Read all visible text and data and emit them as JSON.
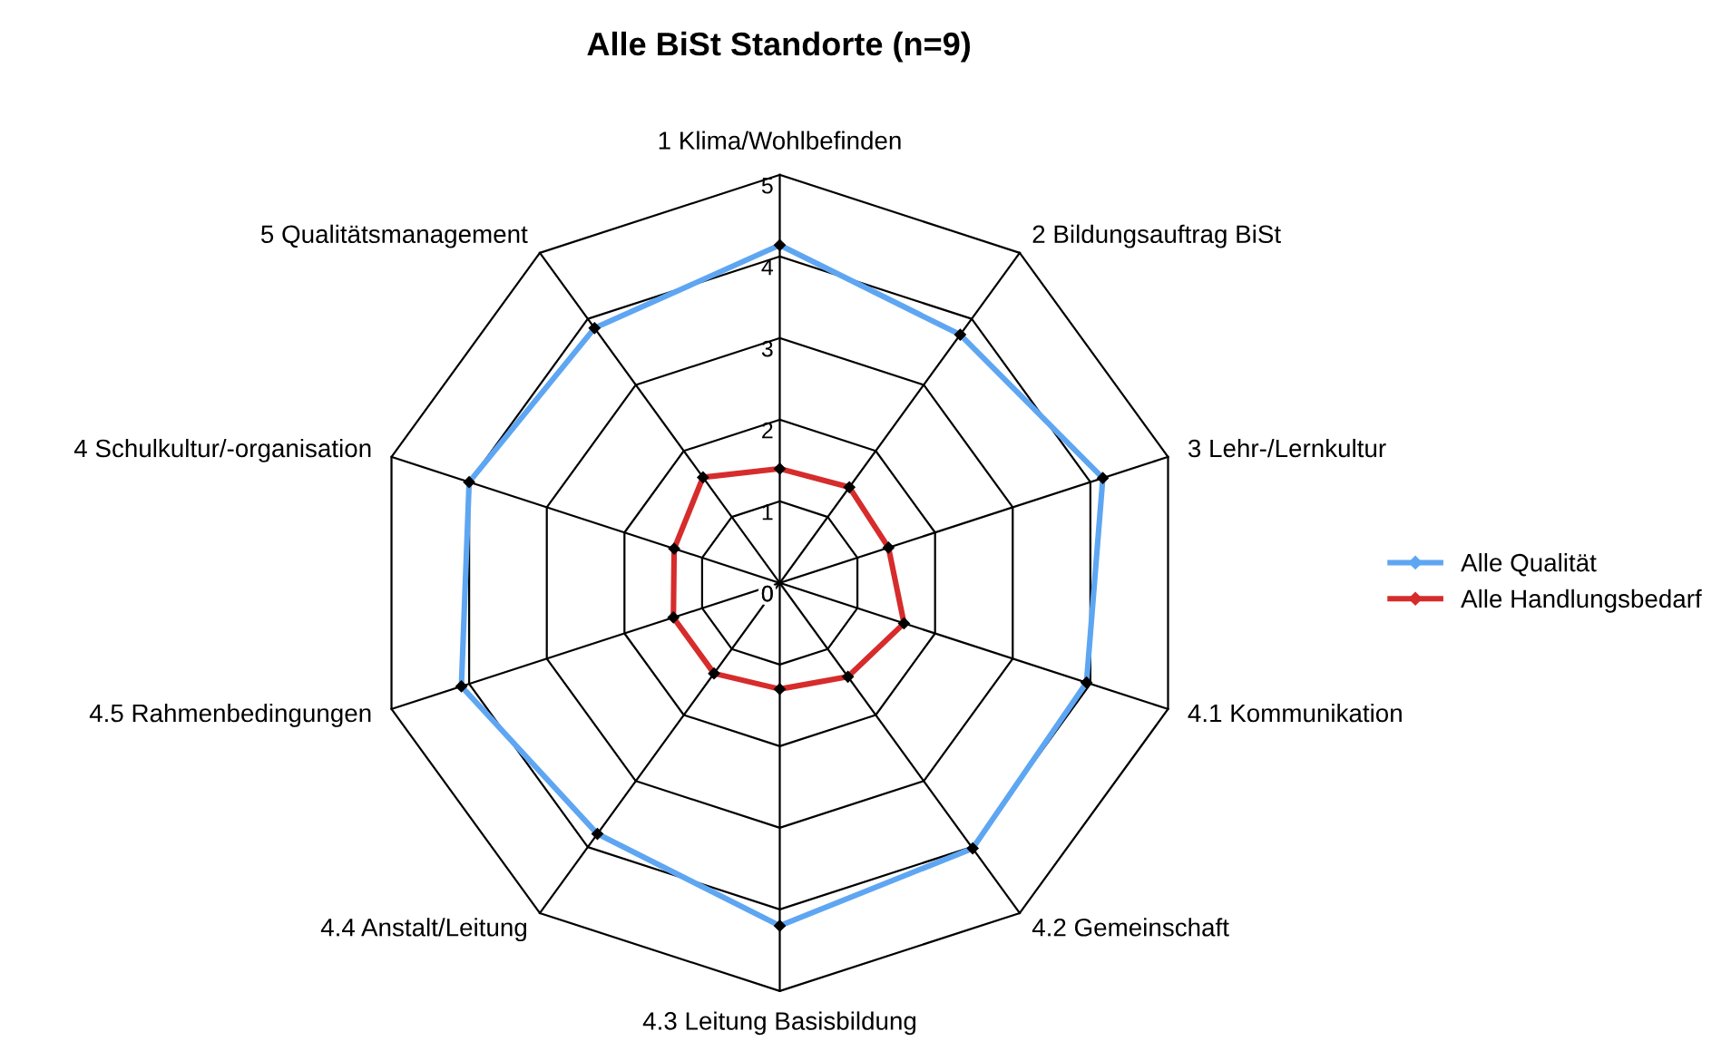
{
  "chart_data": {
    "type": "radar",
    "title": "Alle BiSt Standorte (n=9)",
    "categories": [
      "1 Klima/Wohlbefinden",
      "2 Bildungsauftrag BiSt",
      "3 Lehr-/Lernkultur",
      "4.1 Kommunikation",
      "4.2 Gemeinschaft",
      "4.3 Leitung Basisbildung",
      "4.4 Anstalt/Leitung",
      "4.5 Rahmenbedingungen",
      "4 Schulkultur/-organisation",
      "5 Qualitätsmanagement"
    ],
    "series": [
      {
        "name": "Alle Qualität",
        "color": "#5ea6f2",
        "values": [
          4.14,
          3.76,
          4.16,
          3.95,
          4.02,
          4.2,
          3.8,
          4.1,
          4.0,
          3.86
        ]
      },
      {
        "name": "Alle Handlungsbedarf",
        "color": "#d62c2c",
        "values": [
          1.4,
          1.45,
          1.4,
          1.6,
          1.42,
          1.3,
          1.37,
          1.37,
          1.36,
          1.6
        ]
      }
    ],
    "ylim": [
      0,
      5
    ],
    "yticks": [
      0,
      1,
      2,
      3,
      4,
      5
    ],
    "grid": true,
    "legend": "right",
    "marker": "diamond",
    "line_style": "solid"
  }
}
